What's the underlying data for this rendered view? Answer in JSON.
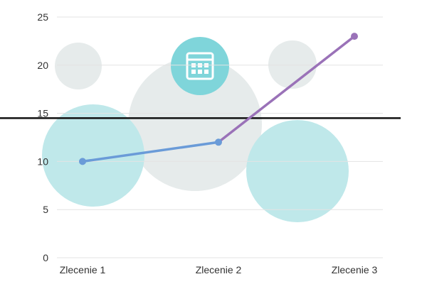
{
  "chart_data": {
    "type": "line",
    "categories": [
      "Zlecenie 1",
      "Zlecenie 2",
      "Zlecenie 3"
    ],
    "values": [
      10,
      12,
      23
    ],
    "ylim": [
      0,
      25
    ],
    "yticks": [
      0,
      5,
      10,
      15,
      20,
      25
    ],
    "reference_line": 14.5,
    "grid": true,
    "legend": "none",
    "segment_colors": [
      "#6a9bd8",
      "#9a72b8"
    ],
    "decorations": {
      "circle_colors": {
        "teal": "#bfe8ea",
        "grey": "#e6ebeb",
        "icon_bg": "#7fd5da"
      },
      "icon": "calendar-icon"
    }
  }
}
